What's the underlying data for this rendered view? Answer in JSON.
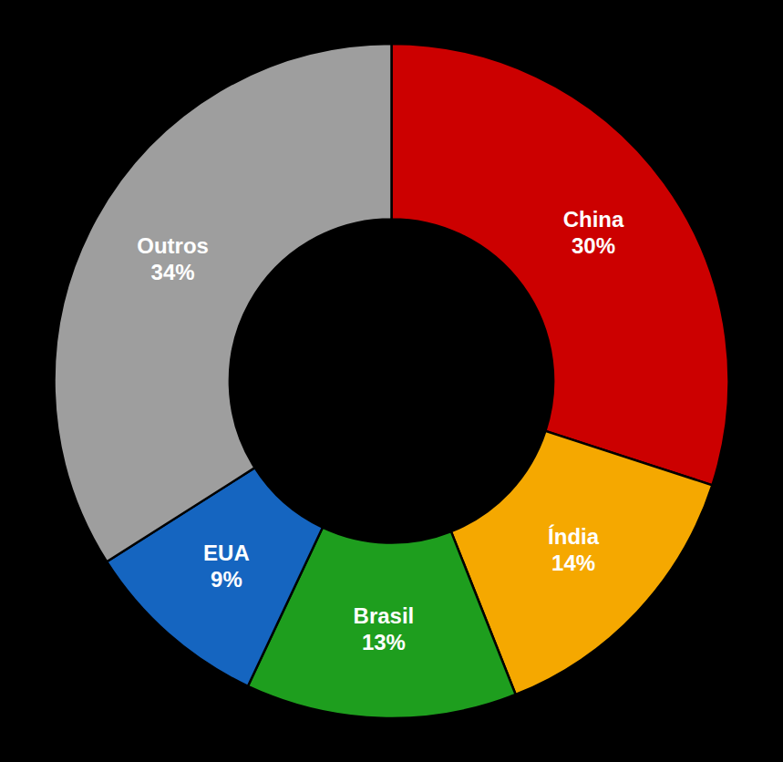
{
  "chart_data": {
    "type": "pie",
    "categories": [
      "China",
      "Índia",
      "Brasil",
      "EUA",
      "Outros"
    ],
    "values": [
      30,
      14,
      13,
      9,
      34
    ],
    "value_labels": [
      "30%",
      "14%",
      "13%",
      "9%",
      "34%"
    ],
    "colors": [
      "#cc0000",
      "#f5a800",
      "#1e9e1e",
      "#1565c0",
      "#9e9e9e"
    ],
    "data_labels": true
  }
}
